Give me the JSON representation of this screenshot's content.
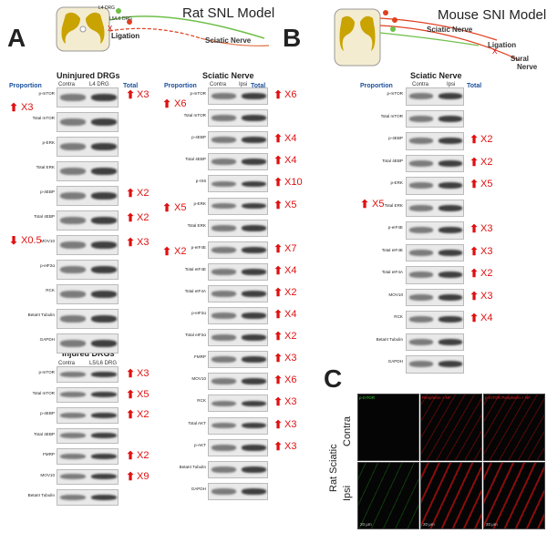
{
  "panels": {
    "A": "A",
    "B": "B",
    "C": "C"
  },
  "rat_model": {
    "title": "Rat SNL Model",
    "l4": "L4 DRG",
    "l56": "L5/L6 DRG",
    "ligation": "Ligation",
    "sciatic": "Sciatic Nerve",
    "x": "X"
  },
  "mouse_model": {
    "title": "Mouse SNI Model",
    "sciatic": "Sciatic Nerve",
    "ligation": "Ligation",
    "sural": "Sural",
    "sural2": "Nerve",
    "x": "X"
  },
  "headers": {
    "proportion": "Proportion",
    "total": "Total"
  },
  "uninjured": {
    "title": "Uninjured DRGs",
    "cols": [
      "Contra",
      "L4 DRG"
    ],
    "rows": [
      [
        "p-mTOR",
        "X3"
      ],
      [
        "Total mTOR",
        ""
      ],
      [
        "p-ERK",
        ""
      ],
      [
        "Total ERK",
        ""
      ],
      [
        "p-4EBP",
        "X2"
      ],
      [
        "Total 4EBP",
        "X2"
      ],
      [
        "MOV10",
        "X3"
      ],
      [
        "p-eIF2α",
        ""
      ],
      [
        "RCK",
        ""
      ],
      [
        "BetaIII Tubulin",
        ""
      ],
      [
        "GAPDH",
        ""
      ]
    ],
    "props": [
      "X3",
      "X0.5"
    ]
  },
  "injured": {
    "title": "Injured DRGs",
    "cols": [
      "Contra",
      "L5/L6 DRG"
    ],
    "rows": [
      [
        "p-mTOR",
        "X3"
      ],
      [
        "Total mTOR",
        "X5"
      ],
      [
        "p-4EBP",
        "X2"
      ],
      [
        "Total 4EBP",
        ""
      ],
      [
        "FMRP",
        "X2"
      ],
      [
        "MOV10",
        "X9"
      ],
      [
        "BetaIII Tubulin",
        ""
      ]
    ]
  },
  "rat_sciatic": {
    "title": "Sciatic Nerve",
    "cols": [
      "Contra",
      "Ipsi"
    ],
    "rows": [
      [
        "p-mTOR",
        "X6"
      ],
      [
        "Total mTOR",
        ""
      ],
      [
        "p-4EBP",
        "X4"
      ],
      [
        "Total 4EBP",
        "X4"
      ],
      [
        "p-rS6",
        "X10"
      ],
      [
        "p-ERK",
        "X5"
      ],
      [
        "Total ERK",
        ""
      ],
      [
        "p-eIF4E",
        "X7"
      ],
      [
        "Total eIF4E",
        "X4"
      ],
      [
        "Total eIF4A",
        "X2"
      ],
      [
        "p-eIF2α",
        "X4"
      ],
      [
        "Total eIF2α",
        "X2"
      ],
      [
        "FMRP",
        "X3"
      ],
      [
        "MOV10",
        "X6"
      ],
      [
        "RCK",
        "X3"
      ],
      [
        "Total AKT",
        "X3"
      ],
      [
        "p-AKT",
        "X3"
      ],
      [
        "BetaIII Tubulin",
        ""
      ],
      [
        "GAPDH",
        ""
      ]
    ],
    "props": [
      "X6",
      "X5",
      "X2"
    ]
  },
  "mouse_sciatic": {
    "title": "Sciatic Nerve",
    "cols": [
      "Contra",
      "Ipsi"
    ],
    "rows": [
      [
        "p-mTOR",
        ""
      ],
      [
        "Total mTOR",
        ""
      ],
      [
        "p-4EBP",
        "X2"
      ],
      [
        "Total 4EBP",
        "X2"
      ],
      [
        "p-ERK",
        "X5"
      ],
      [
        "Total ERK",
        ""
      ],
      [
        "p-eIF4E",
        "X3"
      ],
      [
        "Total eIF4E",
        "X3"
      ],
      [
        "Total eIF4A",
        "X2"
      ],
      [
        "MOV10",
        "X3"
      ],
      [
        "RCK",
        "X4"
      ],
      [
        "BetaIII Tubulin",
        ""
      ],
      [
        "GAPDH",
        ""
      ]
    ],
    "props": [
      "X5"
    ]
  },
  "panel_c": {
    "side1": "Rat Sciatic",
    "row1": "Contra",
    "row2": "Ipsi",
    "cols": [
      "p-mTOR",
      "Peripherin + NF",
      "p-mTOR  Peripherin + NF"
    ],
    "scale": "20 μm"
  }
}
